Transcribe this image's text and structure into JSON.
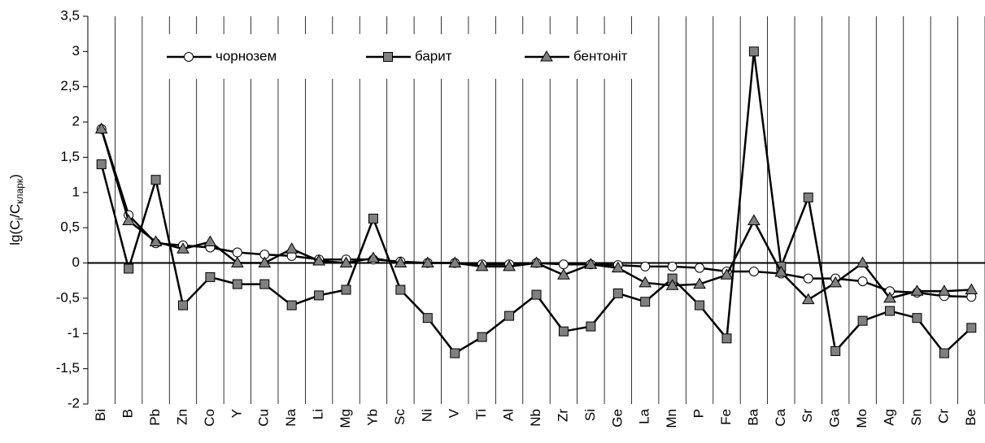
{
  "chart_data": {
    "type": "line",
    "ylabel": [
      "lg(C",
      "i",
      "/C",
      "кларк",
      ")"
    ],
    "categories": [
      "Bi",
      "B",
      "Pb",
      "Zn",
      "Co",
      "Y",
      "Cu",
      "Na",
      "Li",
      "Mg",
      "Yb",
      "Sc",
      "Ni",
      "V",
      "Ti",
      "Al",
      "Nb",
      "Zr",
      "Si",
      "Ge",
      "La",
      "Mn",
      "P",
      "Fe",
      "Ba",
      "Ca",
      "Sr",
      "Ga",
      "Mo",
      "Ag",
      "Sn",
      "Cr",
      "Be"
    ],
    "series": [
      {
        "name": "чорнозем",
        "color": "#000000",
        "marker": "circle",
        "marker_color": "#ffffff",
        "values": [
          1.9,
          0.68,
          0.28,
          0.25,
          0.22,
          0.15,
          0.12,
          0.1,
          0.05,
          0.05,
          0.05,
          0.02,
          0,
          0,
          -0.02,
          -0.02,
          0,
          -0.02,
          -0.02,
          -0.03,
          -0.05,
          -0.05,
          -0.07,
          -0.12,
          -0.12,
          -0.15,
          -0.22,
          -0.22,
          -0.26,
          -0.4,
          -0.42,
          -0.47,
          -0.48
        ]
      },
      {
        "name": "барит",
        "color": "#000000",
        "marker": "square",
        "marker_color": "#808080",
        "values": [
          1.4,
          -0.08,
          1.18,
          -0.6,
          -0.2,
          -0.3,
          -0.3,
          -0.6,
          -0.46,
          -0.38,
          0.63,
          -0.38,
          -0.78,
          -1.28,
          -1.05,
          -0.75,
          -0.45,
          -0.97,
          -0.9,
          -0.43,
          -0.55,
          -0.22,
          -0.6,
          -1.07,
          3.0,
          -0.05,
          0.93,
          -1.25,
          -0.82,
          -0.68,
          -0.78,
          -1.28,
          -0.92
        ]
      },
      {
        "name": "бентоніт",
        "color": "#000000",
        "marker": "triangle",
        "marker_color": "#808080",
        "values": [
          1.9,
          0.6,
          0.3,
          0.2,
          0.3,
          0,
          0,
          0.2,
          0.03,
          0,
          0.07,
          0,
          0,
          0,
          -0.05,
          -0.05,
          0,
          -0.17,
          -0.02,
          -0.07,
          -0.28,
          -0.32,
          -0.3,
          -0.17,
          0.6,
          -0.13,
          -0.52,
          -0.28,
          0,
          -0.5,
          -0.4,
          -0.4,
          -0.38
        ]
      }
    ],
    "ylim": [
      -2,
      3.5
    ],
    "yticks": [
      -2,
      {
        "value": -1.5,
        "label": "-1,5"
      },
      -1,
      {
        "value": -0.5,
        "label": "-0,5"
      },
      0,
      {
        "value": 0.5,
        "label": "0,5"
      },
      1,
      {
        "value": 1.5,
        "label": "1,5"
      },
      2,
      {
        "value": 2.5,
        "label": "2,5"
      },
      3,
      {
        "value": 3.5,
        "label": "3,5"
      }
    ],
    "grid": "x",
    "legend": "top"
  }
}
